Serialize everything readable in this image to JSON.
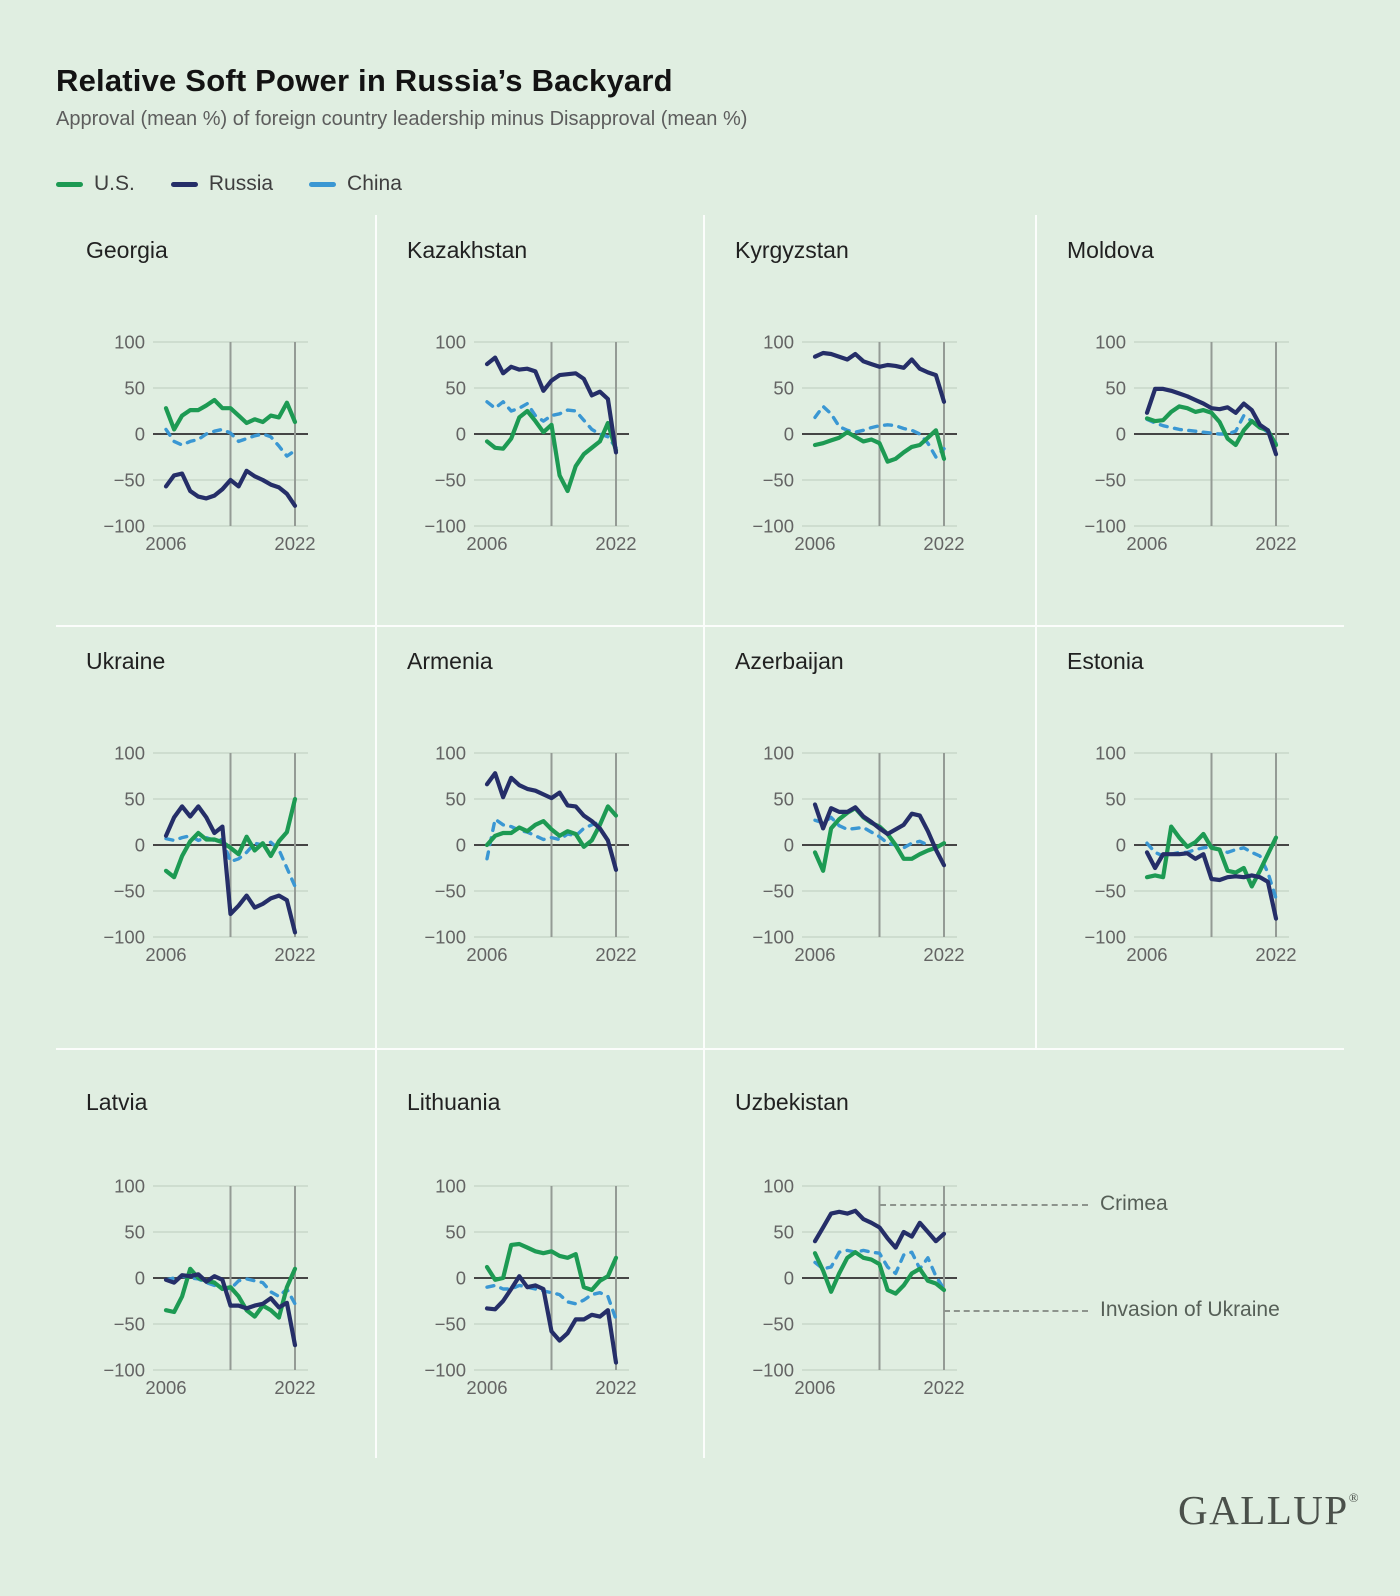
{
  "header": {
    "title": "Relative Soft Power in Russia’s Backyard",
    "subtitle": "Approval (mean %) of foreign country leadership minus Disapproval (mean %)"
  },
  "legend": [
    {
      "label": "U.S.",
      "color": "#1d9a53",
      "dash": false
    },
    {
      "label": "Russia",
      "color": "#252e68",
      "dash": false
    },
    {
      "label": "China",
      "color": "#3a97d3",
      "dash": true
    }
  ],
  "axes": {
    "y_tick_values": [
      100,
      50,
      0,
      -50,
      -100
    ],
    "y_tick_labels": [
      "100",
      "50",
      "0",
      "−50",
      "−100"
    ],
    "x_tick_years": [
      2006,
      2022
    ],
    "x_tick_labels": [
      "2006",
      "2022"
    ],
    "event_years": [
      2014,
      2022
    ],
    "ylim": [
      -100,
      100
    ]
  },
  "annotations": [
    {
      "label": "Crimea",
      "event_year": 2014,
      "value": 80
    },
    {
      "label": "Invasion of Ukraine",
      "event_year": 2022,
      "value": -35
    }
  ],
  "footer": {
    "logo": "GALLUP",
    "registered": "®"
  },
  "chart_data": [
    {
      "type": "line",
      "title": "Georgia",
      "x_start": 2006,
      "x_end": 2022,
      "series": [
        {
          "name": "U.S.",
          "values": [
            28,
            5,
            20,
            26,
            26,
            31,
            37,
            28,
            28,
            20,
            12,
            16,
            13,
            20,
            18,
            34,
            13
          ]
        },
        {
          "name": "Russia",
          "values": [
            -57,
            -45,
            -43,
            -62,
            -68,
            -70,
            -67,
            -60,
            -50,
            -57,
            -40,
            -46,
            -50,
            -55,
            -58,
            -65,
            -78
          ]
        },
        {
          "name": "China",
          "values": [
            5,
            -8,
            -12,
            -8,
            -6,
            0,
            3,
            5,
            1,
            -8,
            -5,
            -2,
            0,
            -3,
            -13,
            -24,
            -18
          ]
        }
      ]
    },
    {
      "type": "line",
      "title": "Kazakhstan",
      "x_start": 2006,
      "x_end": 2022,
      "series": [
        {
          "name": "U.S.",
          "values": [
            -8,
            -15,
            -16,
            -5,
            18,
            25,
            14,
            2,
            10,
            -45,
            -62,
            -35,
            -22,
            -15,
            -8,
            12,
            -18
          ]
        },
        {
          "name": "Russia",
          "values": [
            76,
            83,
            66,
            73,
            70,
            71,
            68,
            47,
            58,
            64,
            65,
            66,
            60,
            42,
            46,
            38,
            -20
          ]
        },
        {
          "name": "China",
          "values": [
            35,
            28,
            35,
            25,
            28,
            33,
            20,
            14,
            20,
            22,
            26,
            25,
            15,
            5,
            0,
            -3,
            -15
          ]
        }
      ]
    },
    {
      "type": "line",
      "title": "Kyrgyzstan",
      "x_start": 2006,
      "x_end": 2022,
      "series": [
        {
          "name": "U.S.",
          "values": [
            -12,
            -10,
            -7,
            -4,
            2,
            -3,
            -8,
            -6,
            -10,
            -30,
            -27,
            -20,
            -14,
            -12,
            -4,
            4,
            -27
          ]
        },
        {
          "name": "Russia",
          "values": [
            84,
            88,
            87,
            84,
            81,
            87,
            79,
            76,
            73,
            75,
            74,
            72,
            81,
            71,
            67,
            64,
            35
          ]
        },
        {
          "name": "China",
          "values": [
            18,
            30,
            22,
            8,
            4,
            2,
            4,
            7,
            9,
            10,
            9,
            6,
            4,
            0,
            -10,
            -25,
            -16
          ]
        }
      ]
    },
    {
      "type": "line",
      "title": "Moldova",
      "x_start": 2006,
      "x_end": 2022,
      "series": [
        {
          "name": "U.S.",
          "values": [
            17,
            14,
            15,
            24,
            30,
            28,
            24,
            26,
            23,
            13,
            -5,
            -12,
            4,
            14,
            7,
            4,
            -12
          ]
        },
        {
          "name": "Russia",
          "values": [
            23,
            49,
            49,
            47,
            44,
            41,
            37,
            33,
            28,
            27,
            29,
            23,
            33,
            26,
            10,
            4,
            -22
          ]
        },
        {
          "name": "China",
          "values": [
            16,
            12,
            9,
            7,
            5,
            4,
            3,
            2,
            1,
            0,
            0,
            3,
            20,
            14,
            8,
            2,
            -10
          ]
        }
      ]
    },
    {
      "type": "line",
      "title": "Ukraine",
      "x_start": 2006,
      "x_end": 2022,
      "series": [
        {
          "name": "U.S.",
          "values": [
            -28,
            -35,
            -12,
            4,
            13,
            6,
            6,
            3,
            -3,
            -10,
            9,
            -6,
            2,
            -12,
            4,
            14,
            50
          ]
        },
        {
          "name": "Russia",
          "values": [
            10,
            30,
            42,
            31,
            42,
            30,
            13,
            20,
            -75,
            -66,
            -55,
            -68,
            -64,
            -58,
            -55,
            -60,
            -95
          ]
        },
        {
          "name": "China",
          "values": [
            7,
            5,
            8,
            10,
            5,
            8,
            5,
            6,
            -18,
            -15,
            -8,
            2,
            0,
            3,
            -5,
            -25,
            -45
          ]
        }
      ]
    },
    {
      "type": "line",
      "title": "Armenia",
      "x_start": 2006,
      "x_end": 2022,
      "series": [
        {
          "name": "U.S.",
          "values": [
            0,
            10,
            13,
            13,
            19,
            15,
            22,
            26,
            17,
            10,
            15,
            12,
            -2,
            5,
            22,
            42,
            32
          ]
        },
        {
          "name": "Russia",
          "values": [
            66,
            78,
            52,
            73,
            65,
            61,
            59,
            55,
            51,
            57,
            43,
            42,
            32,
            26,
            18,
            5,
            -27
          ]
        },
        {
          "name": "China",
          "values": [
            -15,
            28,
            22,
            20,
            16,
            14,
            10,
            6,
            8,
            6,
            12,
            10,
            18,
            22,
            25,
            null,
            null
          ]
        }
      ]
    },
    {
      "type": "line",
      "title": "Azerbaijan",
      "x_start": 2006,
      "x_end": 2022,
      "series": [
        {
          "name": "U.S.",
          "values": [
            -8,
            -28,
            18,
            28,
            35,
            40,
            30,
            24,
            20,
            12,
            0,
            -15,
            -15,
            -10,
            -6,
            -3,
            2
          ]
        },
        {
          "name": "Russia",
          "values": [
            44,
            18,
            40,
            36,
            36,
            41,
            31,
            25,
            18,
            12,
            17,
            22,
            34,
            32,
            15,
            -5,
            -22
          ]
        },
        {
          "name": "China",
          "values": [
            27,
            24,
            30,
            21,
            17,
            18,
            19,
            14,
            9,
            2,
            0,
            -3,
            2,
            4,
            0,
            null,
            null
          ]
        }
      ]
    },
    {
      "type": "line",
      "title": "Estonia",
      "x_start": 2006,
      "x_end": 2022,
      "series": [
        {
          "name": "U.S.",
          "values": [
            -35,
            -33,
            -35,
            20,
            8,
            -2,
            3,
            12,
            -3,
            -5,
            -28,
            -30,
            -25,
            -45,
            -28,
            -10,
            8
          ]
        },
        {
          "name": "Russia",
          "values": [
            -8,
            -25,
            -10,
            -10,
            -10,
            -9,
            -15,
            -10,
            -37,
            -38,
            -35,
            -34,
            -35,
            -33,
            -35,
            -40,
            -80
          ]
        },
        {
          "name": "China",
          "values": [
            2,
            -8,
            -12,
            -10,
            -8,
            -8,
            -5,
            -3,
            -2,
            -5,
            -8,
            -5,
            -3,
            -8,
            -12,
            -30,
            -58
          ]
        }
      ]
    },
    {
      "type": "line",
      "title": "Latvia",
      "x_start": 2006,
      "x_end": 2022,
      "series": [
        {
          "name": "U.S.",
          "values": [
            -35,
            -37,
            -20,
            10,
            0,
            -3,
            -5,
            -12,
            -10,
            -20,
            -35,
            -42,
            -30,
            -35,
            -43,
            -10,
            10
          ]
        },
        {
          "name": "Russia",
          "values": [
            -2,
            -5,
            3,
            2,
            4,
            -4,
            2,
            -2,
            -30,
            -30,
            -33,
            -30,
            -28,
            -22,
            -32,
            -27,
            -73
          ]
        },
        {
          "name": "China",
          "values": [
            -2,
            0,
            2,
            0,
            -1,
            -5,
            -8,
            -10,
            -12,
            -3,
            -1,
            -3,
            -5,
            -15,
            -20,
            -12,
            -28
          ]
        }
      ]
    },
    {
      "type": "line",
      "title": "Lithuania",
      "x_start": 2006,
      "x_end": 2022,
      "series": [
        {
          "name": "U.S.",
          "values": [
            12,
            -2,
            0,
            36,
            37,
            33,
            29,
            27,
            29,
            24,
            22,
            26,
            -10,
            -13,
            -3,
            2,
            22
          ]
        },
        {
          "name": "Russia",
          "values": [
            -33,
            -34,
            -25,
            -12,
            2,
            -10,
            -8,
            -12,
            -58,
            -68,
            -60,
            -45,
            -45,
            -40,
            -42,
            -35,
            -92
          ]
        },
        {
          "name": "China",
          "values": [
            -10,
            -8,
            -12,
            -12,
            -8,
            -10,
            -12,
            -14,
            -16,
            -18,
            -26,
            -28,
            -24,
            -18,
            -16,
            -20,
            -45
          ]
        }
      ]
    },
    {
      "type": "line",
      "title": "Uzbekistan",
      "x_start": 2006,
      "x_end": 2022,
      "series": [
        {
          "name": "U.S.",
          "values": [
            27,
            8,
            -15,
            5,
            22,
            28,
            22,
            20,
            15,
            -13,
            -17,
            -8,
            5,
            10,
            -3,
            -6,
            -13
          ]
        },
        {
          "name": "Russia",
          "values": [
            40,
            55,
            70,
            72,
            70,
            73,
            64,
            60,
            55,
            43,
            33,
            50,
            45,
            60,
            50,
            40,
            48
          ]
        },
        {
          "name": "China",
          "values": [
            17,
            10,
            12,
            28,
            30,
            28,
            30,
            28,
            27,
            12,
            5,
            25,
            28,
            10,
            22,
            2,
            -12
          ]
        }
      ]
    }
  ]
}
